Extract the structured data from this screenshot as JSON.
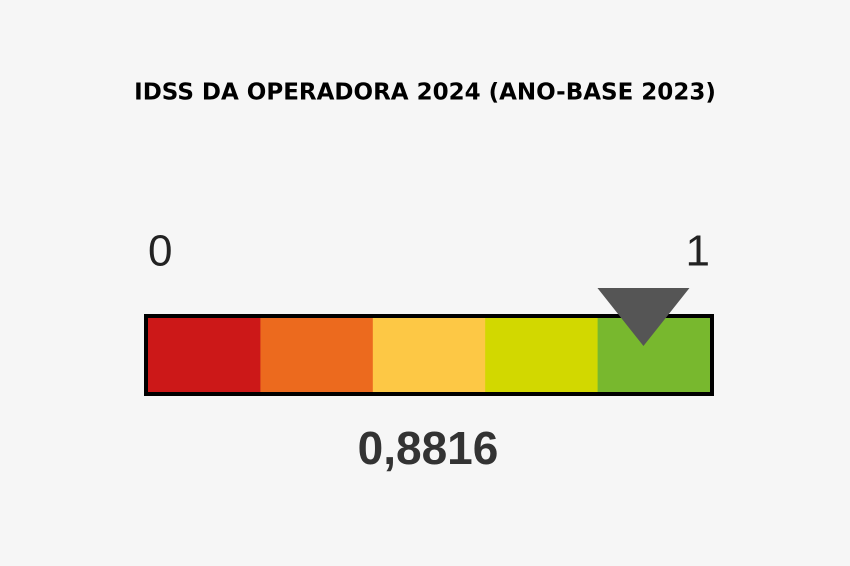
{
  "chart_data": {
    "type": "gauge",
    "title": "IDSS DA OPERADORA 2024 (ANO-BASE 2023)",
    "value": 0.8816,
    "value_label": "0,8816",
    "xlim": [
      0,
      1
    ],
    "xticks": [
      0,
      1
    ],
    "colors": [
      "#cc1818",
      "#ec6a1e",
      "#fdc845",
      "#d2d800",
      "#78b82e"
    ],
    "marker_color": "#555555"
  }
}
